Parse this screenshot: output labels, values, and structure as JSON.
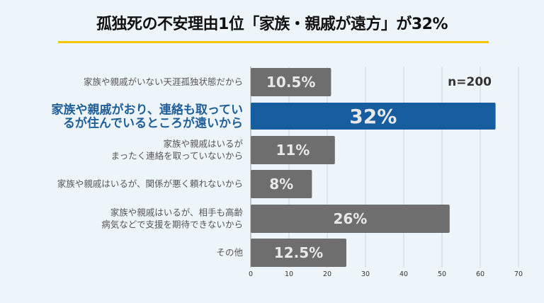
{
  "title": "孤独死の不安理由1位「家族・親戚が遠方」が32%",
  "chart_data": {
    "type": "bar",
    "orientation": "horizontal",
    "annotation": "n=200",
    "categories": [
      [
        "家族や親戚がいない天涯孤独状態だから"
      ],
      [
        "家族や親戚がおり、連絡も取ってい",
        "るが住んでいるところが遠いから"
      ],
      [
        "家族や親戚はいるが",
        "まったく連絡を取っていないから"
      ],
      [
        "家族や親戚はいるが、関係が悪く頼れないから"
      ],
      [
        "家族や親戚はいるが、相手も高齢",
        "病気などで支援を期待できないから"
      ],
      [
        "その他"
      ]
    ],
    "values": [
      21,
      64,
      22,
      16,
      52,
      25
    ],
    "data_labels": [
      "10.5%",
      "32%",
      "11%",
      "8%",
      "26%",
      "12.5%"
    ],
    "highlight_index": 1,
    "xlim": [
      0,
      70
    ],
    "xticks": [
      "0",
      "10",
      "20",
      "30",
      "40",
      "50",
      "60",
      "70"
    ],
    "grid": true,
    "colors": {
      "bar": "#6e6e6e",
      "highlight": "#175ea1",
      "highlight_label": "#1f5f99",
      "underline": "#f5c400",
      "background": "#eef5fa"
    }
  }
}
